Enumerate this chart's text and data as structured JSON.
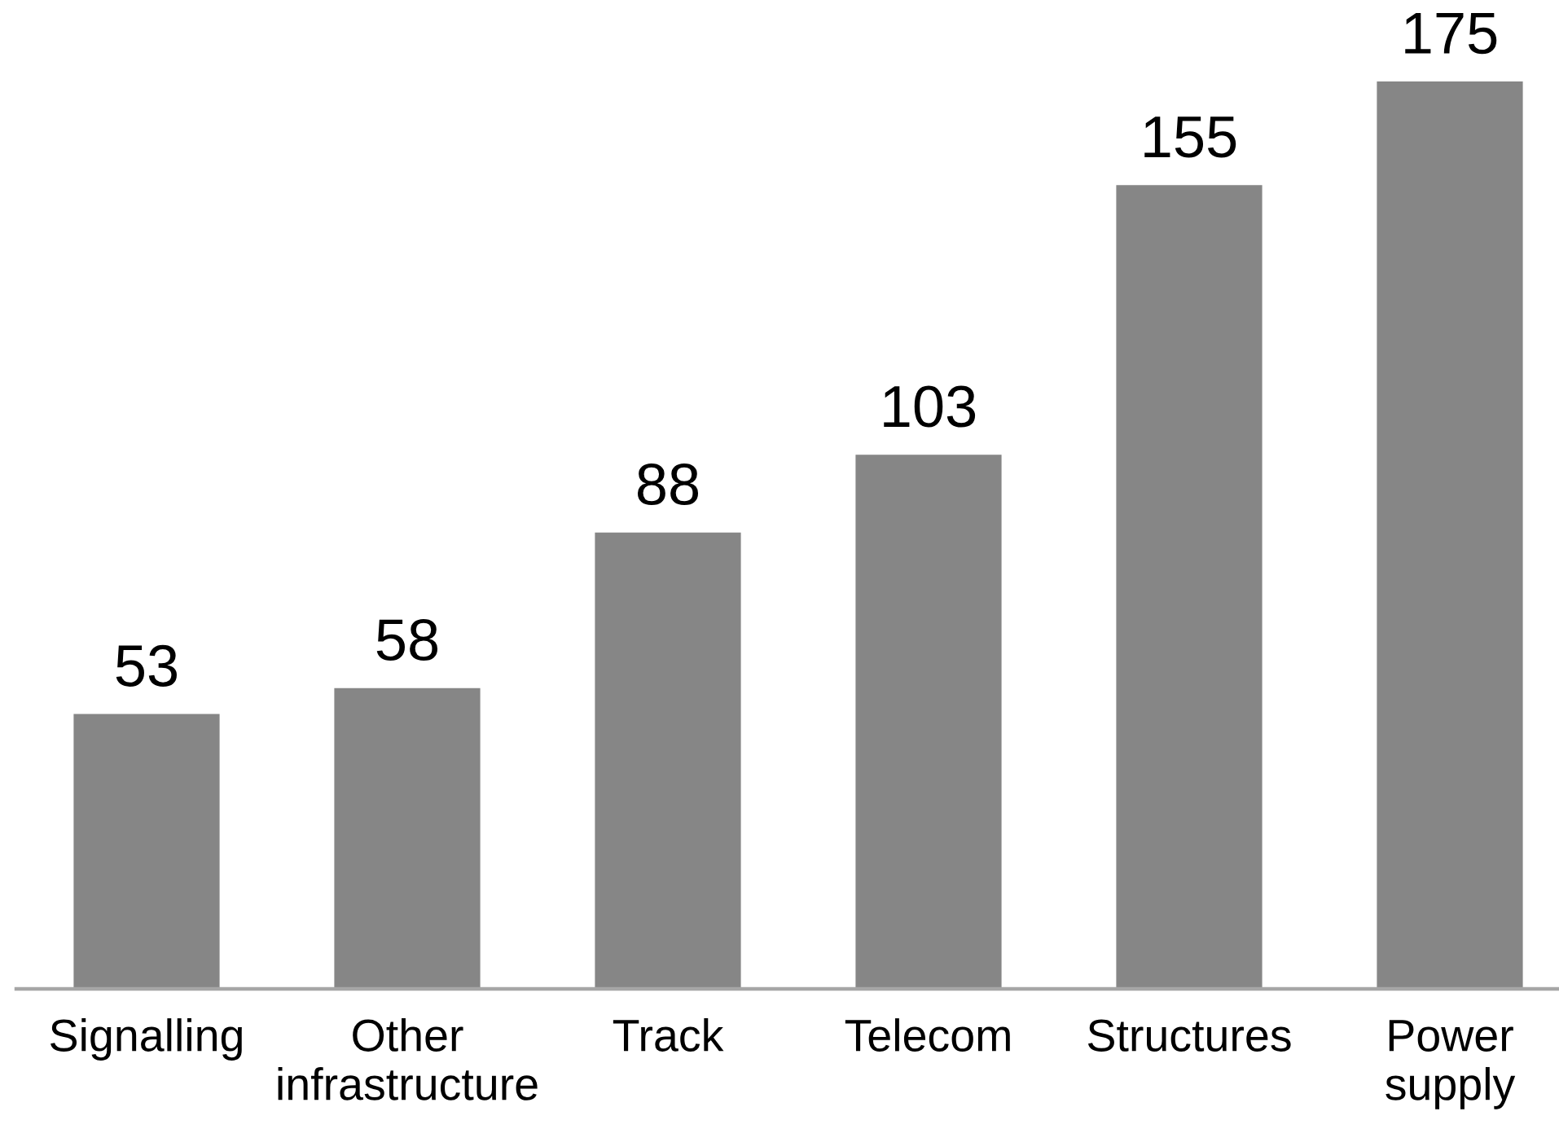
{
  "chart_data": {
    "type": "bar",
    "categories": [
      "Signalling",
      "Other\ninfrastructure",
      "Track",
      "Telecom",
      "Structures",
      "Power\nsupply"
    ],
    "values": [
      53,
      58,
      88,
      103,
      155,
      175
    ],
    "color": "#868686",
    "data_labels": true
  }
}
